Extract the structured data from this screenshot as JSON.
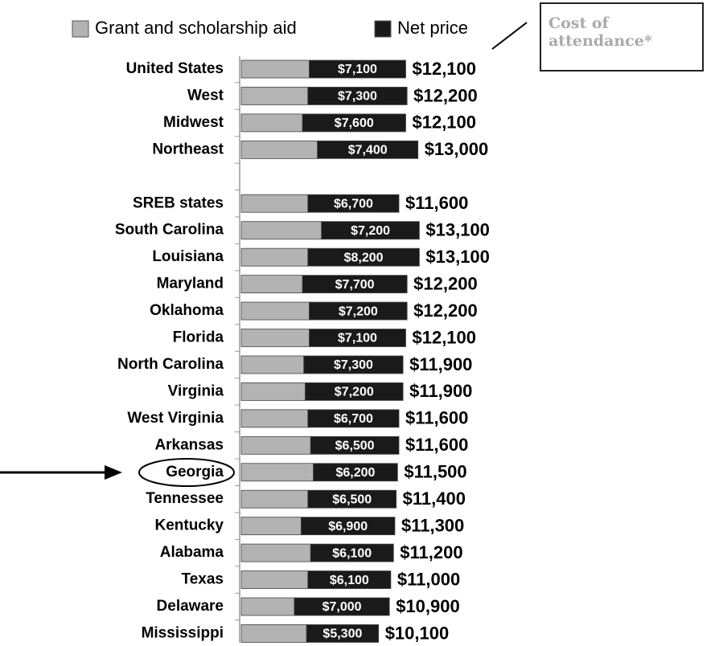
{
  "chart_data": {
    "type": "stacked-barh",
    "annotation": "Cost of attendance*",
    "categories": [
      "United States",
      "West",
      "Midwest",
      "Northeast",
      null,
      "SREB states",
      "South Carolina",
      "Louisiana",
      "Maryland",
      "Oklahoma",
      "Florida",
      "North Carolina",
      "Virginia",
      "West Virginia",
      "Arkansas",
      "Georgia",
      "Tennessee",
      "Kentucky",
      "Alabama",
      "Texas",
      "Delaware",
      "Mississippi"
    ],
    "series": [
      {
        "name": "Grant and scholarship aid",
        "color": "#b3b3b3",
        "values": [
          5000,
          4900,
          4500,
          5600,
          null,
          4900,
          5900,
          4900,
          4500,
          5000,
          5000,
          4600,
          4700,
          4900,
          5100,
          5300,
          4900,
          4400,
          5100,
          4900,
          3900,
          4800
        ]
      },
      {
        "name": "Net price",
        "color": "#1a1a1a",
        "values": [
          7100,
          7300,
          7600,
          7400,
          null,
          6700,
          7200,
          8200,
          7700,
          7200,
          7100,
          7300,
          7200,
          6700,
          6500,
          6200,
          6500,
          6900,
          6100,
          6100,
          7000,
          5300
        ],
        "value_labels": [
          "$7,100",
          "$7,300",
          "$7,600",
          "$7,400",
          null,
          "$6,700",
          "$7,200",
          "$8,200",
          "$7,700",
          "$7,200",
          "$7,100",
          "$7,300",
          "$7,200",
          "$6,700",
          "$6,500",
          "$6,200",
          "$6,500",
          "$6,900",
          "$6,100",
          "$6,100",
          "$7,000",
          "$5,300"
        ]
      }
    ],
    "totals": [
      12100,
      12200,
      12100,
      13000,
      null,
      11600,
      13100,
      13100,
      12200,
      12200,
      12100,
      11900,
      11900,
      11600,
      11600,
      11500,
      11400,
      11300,
      11200,
      11000,
      10900,
      10100
    ],
    "total_labels": [
      "$12,100",
      "$12,200",
      "$12,100",
      "$13,000",
      null,
      "$11,600",
      "$13,100",
      "$13,100",
      "$12,200",
      "$12,200",
      "$12,100",
      "$11,900",
      "$11,900",
      "$11,600",
      "$11,600",
      "$11,500",
      "$11,400",
      "$11,300",
      "$11,200",
      "$11,000",
      "$10,900",
      "$10,100"
    ],
    "xlim": [
      0,
      20000
    ]
  }
}
